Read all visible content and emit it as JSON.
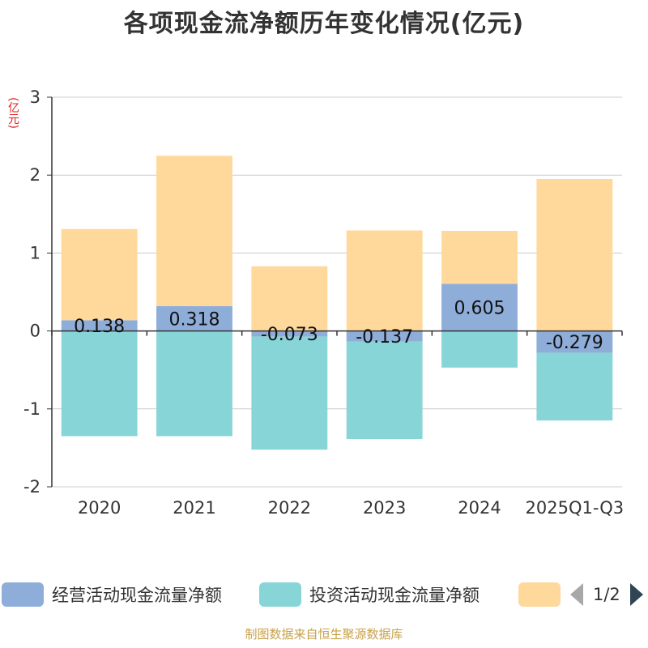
{
  "chart_data": {
    "type": "bar",
    "title": "各项现金流净额历年变化情况(亿元)",
    "ylabel": "(亿元)",
    "categories": [
      "2020",
      "2021",
      "2022",
      "2023",
      "2024",
      "2025Q1-Q3"
    ],
    "ylim": [
      -2,
      3
    ],
    "yticks": [
      "3",
      "2",
      "1",
      "0",
      "-1",
      "-2"
    ],
    "stacked": true,
    "grid": true,
    "legend_position": "bottom",
    "series": [
      {
        "name": "经营活动现金流量净额",
        "color": "#8fadd9",
        "values": [
          0.138,
          0.318,
          -0.073,
          -0.137,
          0.605,
          -0.279
        ],
        "labels": [
          "0.138",
          "0.318",
          "-0.073",
          "-0.137",
          "0.605",
          "-0.279"
        ]
      },
      {
        "name": "投资活动现金流量净额",
        "color": "#88d5d8",
        "values": [
          -1.35,
          -1.35,
          -1.45,
          -1.25,
          -0.47,
          -0.87
        ]
      },
      {
        "name": "",
        "color": "#fed99b",
        "values": [
          1.17,
          1.93,
          0.83,
          1.29,
          0.68,
          1.95
        ]
      }
    ]
  },
  "legend": {
    "pager": "1/2"
  },
  "footer": "制图数据来自恒生聚源数据库"
}
